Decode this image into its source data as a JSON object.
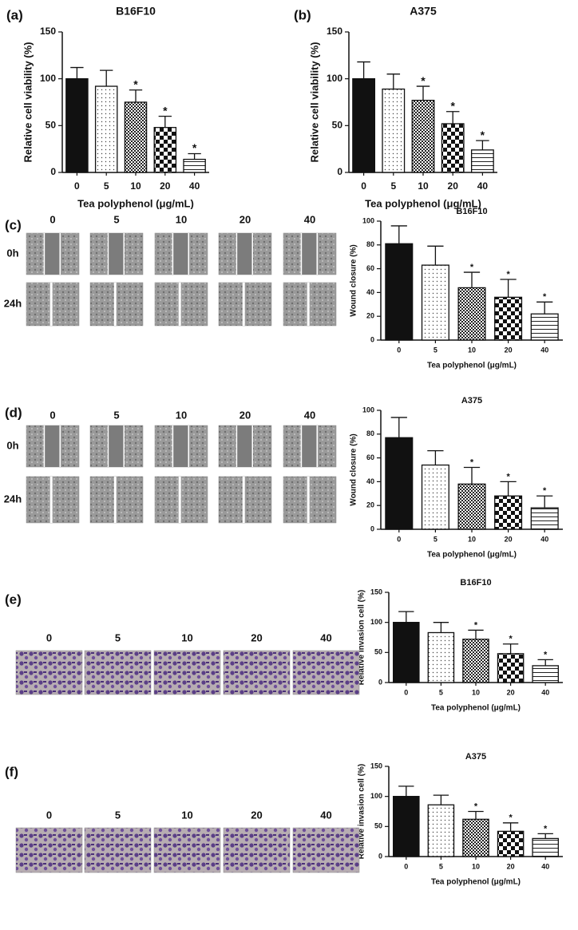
{
  "chart_data": [
    {
      "type": "bar",
      "panel": "(a)",
      "title": "B16F10",
      "x_label": "Tea polyphenol (μg/mL)",
      "y_label": "Relative cell viability (%)",
      "categories": [
        "0",
        "5",
        "10",
        "20",
        "40"
      ],
      "values": [
        100,
        92,
        75,
        48,
        14
      ],
      "errors": [
        12,
        17,
        13,
        12,
        6
      ],
      "significance": [
        null,
        null,
        "*",
        "*",
        "*"
      ],
      "color": "#111111",
      "ylim": [
        0,
        150
      ],
      "yticks": [
        0,
        50,
        100,
        150
      ]
    },
    {
      "type": "bar",
      "panel": "(b)",
      "title": "A375",
      "x_label": "Tea polyphenol (μg/mL)",
      "y_label": "Relative cell viability (%)",
      "categories": [
        "0",
        "5",
        "10",
        "20",
        "40"
      ],
      "values": [
        100,
        89,
        77,
        52,
        24
      ],
      "errors": [
        18,
        16,
        15,
        13,
        10
      ],
      "significance": [
        null,
        null,
        "*",
        "*",
        "*"
      ],
      "color": "#111111",
      "ylim": [
        0,
        150
      ],
      "yticks": [
        0,
        50,
        100,
        150
      ]
    },
    {
      "type": "bar",
      "panel": "(c)",
      "title": "B16F10",
      "x_label": "Tea polyphenol (μg/mL)",
      "y_label": "Wound closure (%)",
      "categories": [
        "0",
        "5",
        "10",
        "20",
        "40"
      ],
      "values": [
        81,
        63,
        44,
        36,
        22
      ],
      "errors": [
        15,
        16,
        13,
        15,
        10
      ],
      "significance": [
        null,
        null,
        "*",
        "*",
        "*"
      ],
      "color": "#111111",
      "ylim": [
        0,
        100
      ],
      "yticks": [
        0,
        20,
        40,
        60,
        80,
        100
      ]
    },
    {
      "type": "bar",
      "panel": "(d)",
      "title": "A375",
      "x_label": "Tea polyphenol (μg/mL)",
      "y_label": "Wound closure (%)",
      "categories": [
        "0",
        "5",
        "10",
        "20",
        "40"
      ],
      "values": [
        77,
        54,
        38,
        28,
        18
      ],
      "errors": [
        17,
        12,
        14,
        12,
        10
      ],
      "significance": [
        null,
        null,
        "*",
        "*",
        "*"
      ],
      "color": "#111111",
      "ylim": [
        0,
        100
      ],
      "yticks": [
        0,
        20,
        40,
        60,
        80,
        100
      ]
    },
    {
      "type": "bar",
      "panel": "(e)",
      "title": "B16F10",
      "x_label": "Tea polyphenol (μg/mL)",
      "y_label": "Relative invasion cell (%)",
      "categories": [
        "0",
        "5",
        "10",
        "20",
        "40"
      ],
      "values": [
        100,
        83,
        72,
        48,
        28
      ],
      "errors": [
        18,
        17,
        15,
        16,
        10
      ],
      "significance": [
        null,
        null,
        "*",
        "*",
        "*"
      ],
      "color": "#111111",
      "ylim": [
        0,
        150
      ],
      "yticks": [
        0,
        50,
        100,
        150
      ]
    },
    {
      "type": "bar",
      "panel": "(f)",
      "title": "A375",
      "x_label": "Tea polyphenol (μg/mL)",
      "y_label": "Relative invasion cell (%)",
      "categories": [
        "0",
        "5",
        "10",
        "20",
        "40"
      ],
      "values": [
        100,
        86,
        62,
        42,
        30
      ],
      "errors": [
        17,
        16,
        13,
        14,
        8
      ],
      "significance": [
        null,
        null,
        "*",
        "*",
        "*"
      ],
      "color": "#111111",
      "ylim": [
        0,
        150
      ],
      "yticks": [
        0,
        50,
        100,
        150
      ]
    }
  ],
  "image_panels": [
    {
      "columns": [
        "0",
        "5",
        "10",
        "20",
        "40"
      ],
      "rows": [
        "0h",
        "24h"
      ]
    },
    {
      "columns": [
        "0",
        "5",
        "10",
        "20",
        "40"
      ],
      "rows": [
        "0h",
        "24h"
      ]
    },
    {
      "columns": [
        "0",
        "5",
        "10",
        "20",
        "40"
      ]
    },
    {
      "columns": [
        "0",
        "5",
        "10",
        "20",
        "40"
      ]
    }
  ]
}
